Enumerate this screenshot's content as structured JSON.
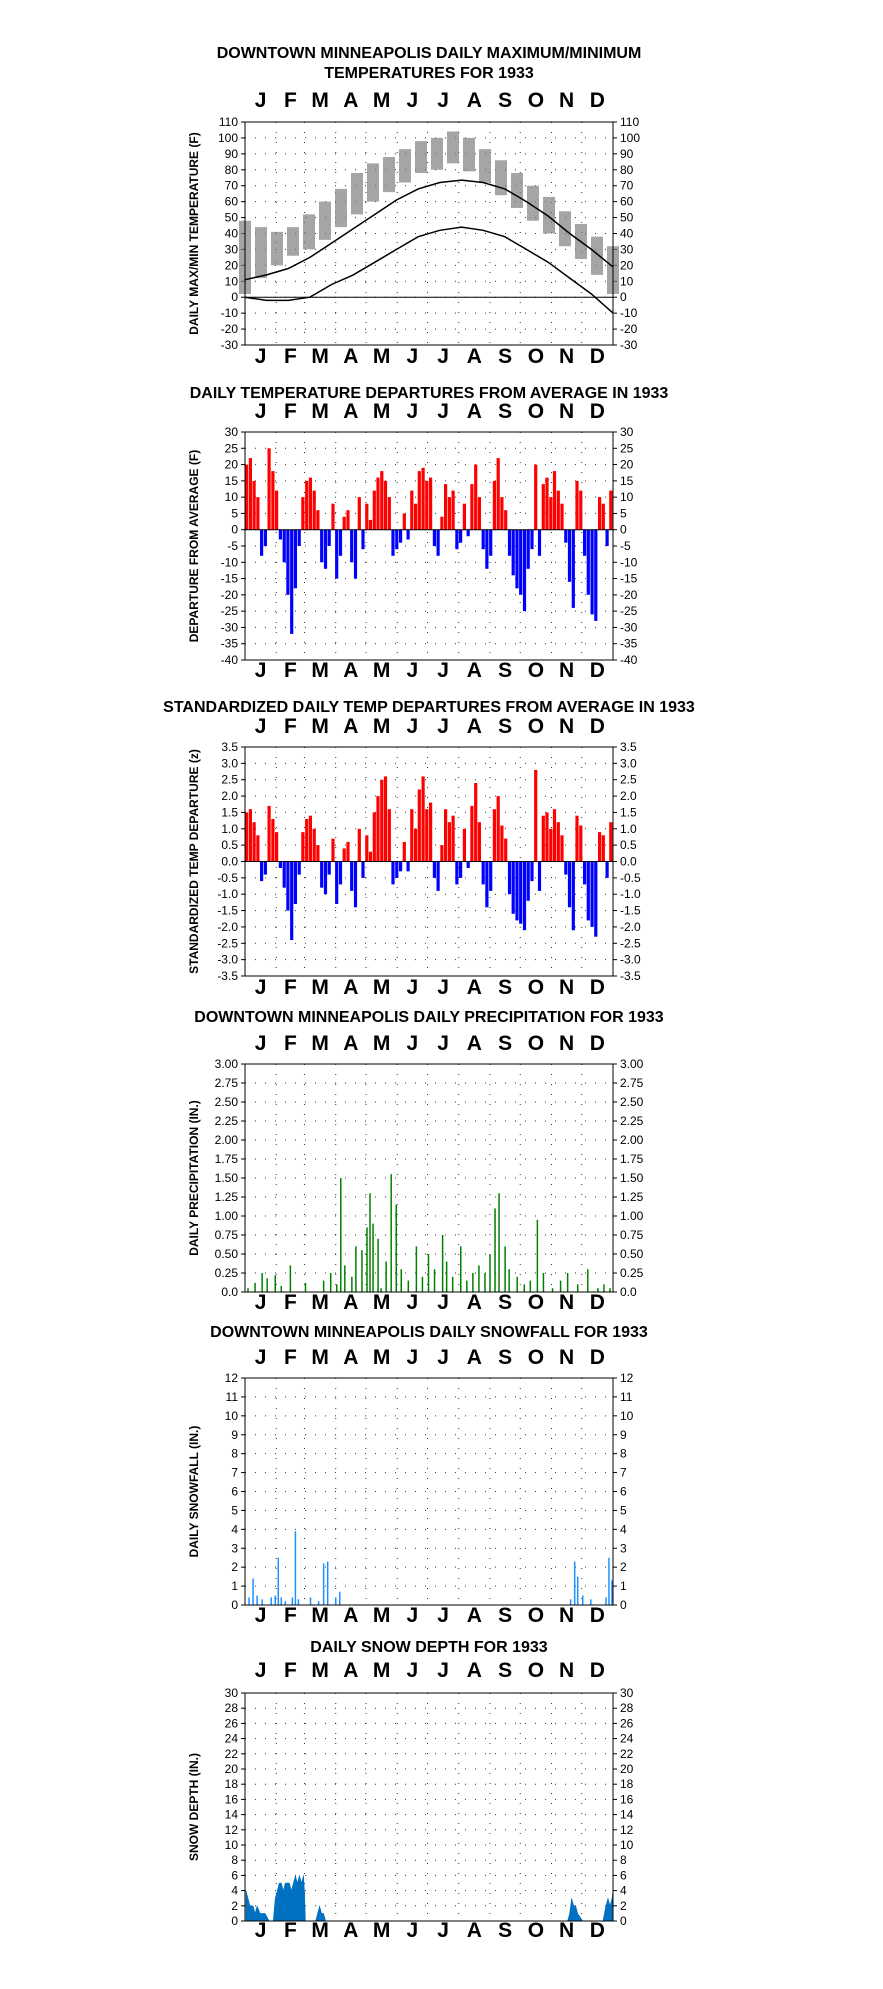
{
  "figure": {
    "months": [
      "J",
      "F",
      "M",
      "A",
      "M",
      "J",
      "J",
      "A",
      "S",
      "O",
      "N",
      "D"
    ]
  },
  "chart_data": [
    {
      "id": "temps",
      "type": "line",
      "title": "DOWNTOWN MINNEAPOLIS DAILY MAXIMUM/MINIMUM",
      "subtitle": "TEMPERATURES FOR 1933",
      "ylabel": "DAILY MAX/MIN TEMPERATURE (F)",
      "ylim": [
        -30,
        110
      ],
      "yticks": [
        110,
        100,
        90,
        80,
        70,
        60,
        50,
        40,
        30,
        20,
        10,
        0,
        -10,
        -20,
        -30
      ],
      "grid": true,
      "series": [
        {
          "name": "",
          "color": "#7f7f7f",
          "values": [
            [
              10,
              40
            ],
            [
              20,
              36
            ],
            [
              28,
              33
            ],
            [
              36,
              34
            ],
            [
              44,
              38
            ],
            [
              52,
              44
            ],
            [
              60,
              52
            ],
            [
              70,
              60
            ],
            [
              76,
              68
            ],
            [
              80,
              74
            ],
            [
              85,
              80
            ],
            [
              90,
              86
            ],
            [
              92,
              88
            ],
            [
              96,
              92
            ],
            [
              92,
              87
            ],
            [
              85,
              80
            ],
            [
              78,
              72
            ],
            [
              70,
              64
            ],
            [
              62,
              56
            ],
            [
              55,
              48
            ],
            [
              46,
              40
            ],
            [
              38,
              32
            ],
            [
              30,
              22
            ],
            [
              24,
              10
            ]
          ]
        },
        {
          "name": "",
          "color": "#000000",
          "values": [
            [
              2,
              20
            ],
            [
              10,
              18
            ],
            [
              18,
              18
            ],
            [
              30,
              20
            ],
            [
              40,
              28
            ],
            [
              52,
              34
            ],
            [
              62,
              42
            ],
            [
              72,
              50
            ],
            [
              78,
              58
            ],
            [
              82,
              62
            ],
            [
              83,
              64
            ],
            [
              82,
              62
            ],
            [
              78,
              58
            ],
            [
              70,
              50
            ],
            [
              60,
              42
            ],
            [
              48,
              32
            ],
            [
              38,
              22
            ],
            [
              28,
              10
            ]
          ]
        }
      ]
    },
    {
      "id": "departures",
      "type": "bar",
      "title": "DAILY TEMPERATURE DEPARTURES FROM AVERAGE IN 1933",
      "ylabel": "DEPARTURE FROM AVERAGE (F)",
      "ylim": [
        -40,
        30
      ],
      "yticks": [
        30,
        25,
        20,
        15,
        10,
        5,
        0,
        -5,
        -10,
        -15,
        -20,
        -25,
        -30,
        -35,
        -40
      ],
      "grid": true,
      "colors": {
        "positive": "#ff0000",
        "negative": "#0000ff"
      },
      "values": [
        20,
        22,
        15,
        10,
        -8,
        -5,
        25,
        18,
        12,
        -3,
        -10,
        -20,
        -32,
        -18,
        -5,
        10,
        15,
        16,
        12,
        6,
        -10,
        -12,
        -5,
        8,
        -15,
        -8,
        4,
        6,
        -10,
        -15,
        10,
        -6,
        8,
        3,
        12,
        16,
        18,
        15,
        10,
        -8,
        -6,
        -4,
        5,
        -3,
        12,
        8,
        18,
        19,
        15,
        16,
        -5,
        -8,
        4,
        14,
        10,
        12,
        -6,
        -4,
        8,
        -2,
        14,
        20,
        10,
        -6,
        -12,
        -8,
        15,
        22,
        10,
        6,
        -8,
        -14,
        -18,
        -20,
        -25,
        -12,
        -6,
        20,
        -8,
        14,
        16,
        10,
        18,
        12,
        8,
        -4,
        -16,
        -24,
        15,
        12,
        -8,
        -20,
        -26,
        -28,
        10,
        8,
        -5,
        12
      ]
    },
    {
      "id": "standardized",
      "type": "bar",
      "title": "STANDARDIZED DAILY TEMP DEPARTURES FROM AVERAGE IN 1933",
      "ylabel": "STANDARDIZED TEMP DEPARTURE (z)",
      "ylim": [
        -3.5,
        3.5
      ],
      "yticks": [
        "3.5",
        "3.0",
        "2.5",
        "2.0",
        "1.5",
        "1.0",
        "0.5",
        "0.0",
        "-0.5",
        "-1.0",
        "-1.5",
        "-2.0",
        "-2.5",
        "-3.0",
        "-3.5"
      ],
      "grid": true,
      "colors": {
        "positive": "#ff0000",
        "negative": "#0000ff"
      },
      "values": [
        1.5,
        1.6,
        1.2,
        0.8,
        -0.6,
        -0.4,
        1.7,
        1.3,
        0.9,
        -0.2,
        -0.8,
        -1.5,
        -2.4,
        -1.3,
        -0.4,
        0.9,
        1.3,
        1.4,
        1.0,
        0.5,
        -0.8,
        -1.0,
        -0.4,
        0.7,
        -1.3,
        -0.7,
        0.4,
        0.6,
        -0.9,
        -1.4,
        1.0,
        -0.5,
        0.8,
        0.3,
        1.5,
        2.0,
        2.5,
        2.6,
        1.6,
        -0.7,
        -0.5,
        -0.3,
        0.6,
        -0.3,
        1.6,
        1.0,
        2.2,
        2.6,
        1.6,
        1.8,
        -0.5,
        -0.9,
        0.5,
        1.6,
        1.2,
        1.4,
        -0.7,
        -0.5,
        1.0,
        -0.2,
        1.7,
        2.4,
        1.2,
        -0.7,
        -1.4,
        -0.9,
        1.6,
        2.0,
        1.1,
        0.7,
        -1.0,
        -1.6,
        -1.8,
        -1.9,
        -2.1,
        -1.2,
        -0.6,
        2.8,
        -0.9,
        1.4,
        1.5,
        1.0,
        1.6,
        1.2,
        0.8,
        -0.4,
        -1.4,
        -2.1,
        1.4,
        1.1,
        -0.7,
        -1.8,
        -2.0,
        -2.3,
        0.9,
        0.8,
        -0.5,
        1.2
      ]
    },
    {
      "id": "precip",
      "type": "bar",
      "title": "DOWNTOWN MINNEAPOLIS DAILY PRECIPITATION FOR 1933",
      "ylabel": "DAILY PRECIPITATION (IN.)",
      "ylim": [
        0,
        3.0
      ],
      "yticks": [
        "3.00",
        "2.75",
        "2.50",
        "2.25",
        "2.00",
        "1.75",
        "1.50",
        "1.25",
        "1.00",
        "0.75",
        "0.50",
        "0.25",
        "0.0"
      ],
      "grid": true,
      "color": "#008000",
      "points": [
        [
          3,
          0.05
        ],
        [
          10,
          0.12
        ],
        [
          17,
          0.25
        ],
        [
          22,
          0.18
        ],
        [
          30,
          0.22
        ],
        [
          36,
          0.08
        ],
        [
          45,
          0.35
        ],
        [
          60,
          0.12
        ],
        [
          78,
          0.15
        ],
        [
          85,
          0.25
        ],
        [
          91,
          0.1
        ],
        [
          95,
          1.5
        ],
        [
          99,
          0.35
        ],
        [
          106,
          0.2
        ],
        [
          110,
          0.6
        ],
        [
          116,
          0.55
        ],
        [
          121,
          0.85
        ],
        [
          124,
          1.3
        ],
        [
          127,
          0.9
        ],
        [
          132,
          0.7
        ],
        [
          135,
          0.05
        ],
        [
          140,
          0.4
        ],
        [
          145,
          1.55
        ],
        [
          150,
          1.15
        ],
        [
          155,
          0.3
        ],
        [
          162,
          0.15
        ],
        [
          170,
          0.6
        ],
        [
          176,
          0.2
        ],
        [
          182,
          0.5
        ],
        [
          188,
          0.3
        ],
        [
          196,
          0.75
        ],
        [
          200,
          0.4
        ],
        [
          206,
          0.2
        ],
        [
          214,
          0.6
        ],
        [
          220,
          0.15
        ],
        [
          226,
          0.25
        ],
        [
          232,
          0.35
        ],
        [
          238,
          0.25
        ],
        [
          243,
          0.5
        ],
        [
          248,
          1.1
        ],
        [
          252,
          1.3
        ],
        [
          258,
          0.6
        ],
        [
          262,
          0.3
        ],
        [
          270,
          0.2
        ],
        [
          277,
          0.1
        ],
        [
          283,
          0.15
        ],
        [
          290,
          0.95
        ],
        [
          296,
          0.25
        ],
        [
          305,
          0.05
        ],
        [
          313,
          0.15
        ],
        [
          320,
          0.25
        ],
        [
          330,
          0.1
        ],
        [
          340,
          0.3
        ],
        [
          350,
          0.05
        ],
        [
          356,
          0.1
        ],
        [
          362,
          0.05
        ]
      ]
    },
    {
      "id": "snowfall",
      "type": "bar",
      "title": "DOWNTOWN MINNEAPOLIS DAILY SNOWFALL FOR 1933",
      "ylabel": "DAILY SNOWFALL (IN.)",
      "ylim": [
        0,
        12
      ],
      "yticks": [
        12,
        11,
        10,
        9,
        8,
        7,
        6,
        5,
        4,
        3,
        2,
        1,
        0
      ],
      "grid": true,
      "color": "#1e90ff",
      "points": [
        [
          4,
          0.4
        ],
        [
          8,
          1.4
        ],
        [
          12,
          0.5
        ],
        [
          17,
          0.3
        ],
        [
          26,
          0.4
        ],
        [
          30,
          0.5
        ],
        [
          33,
          2.5
        ],
        [
          36,
          0.4
        ],
        [
          40,
          0.2
        ],
        [
          47,
          0.4
        ],
        [
          50,
          3.9
        ],
        [
          53,
          0.3
        ],
        [
          65,
          0.4
        ],
        [
          73,
          0.2
        ],
        [
          78,
          2.2
        ],
        [
          82,
          2.3
        ],
        [
          90,
          0.4
        ],
        [
          94,
          0.7
        ],
        [
          323,
          0.3
        ],
        [
          327,
          2.3
        ],
        [
          330,
          1.5
        ],
        [
          335,
          0.5
        ],
        [
          343,
          0.3
        ],
        [
          358,
          0.4
        ],
        [
          361,
          2.5
        ],
        [
          364,
          1.3
        ]
      ]
    },
    {
      "id": "snowdepth",
      "type": "area",
      "title": "DAILY SNOW DEPTH FOR 1933",
      "ylabel": "SNOW DEPTH (IN.)",
      "ylim": [
        0,
        30
      ],
      "yticks": [
        30,
        28,
        26,
        24,
        22,
        20,
        18,
        16,
        14,
        12,
        10,
        8,
        6,
        4,
        2,
        0
      ],
      "grid": true,
      "color": "#0070c0",
      "x": [
        1,
        3,
        5,
        8,
        10,
        12,
        15,
        18,
        20,
        24,
        28,
        30,
        32,
        34,
        36,
        38,
        40,
        42,
        44,
        46,
        48,
        50,
        52,
        54,
        56,
        58,
        59,
        60,
        65,
        70,
        72,
        74,
        76,
        78,
        80,
        82,
        85,
        300,
        320,
        322,
        324,
        326,
        328,
        330,
        335,
        340,
        345,
        350,
        355,
        358,
        360,
        362,
        364,
        365
      ],
      "y": [
        4,
        3,
        2,
        2,
        1,
        2,
        1,
        1,
        1,
        0,
        0,
        3,
        4,
        5,
        5,
        4,
        5,
        5,
        5,
        4,
        5,
        6,
        5,
        6,
        5,
        6,
        4,
        0,
        0,
        0,
        1,
        2,
        1,
        1,
        0,
        0,
        0,
        0,
        0,
        1,
        3,
        2,
        2,
        1,
        0,
        0,
        0,
        0,
        0,
        2,
        3,
        2,
        3,
        4
      ]
    }
  ]
}
